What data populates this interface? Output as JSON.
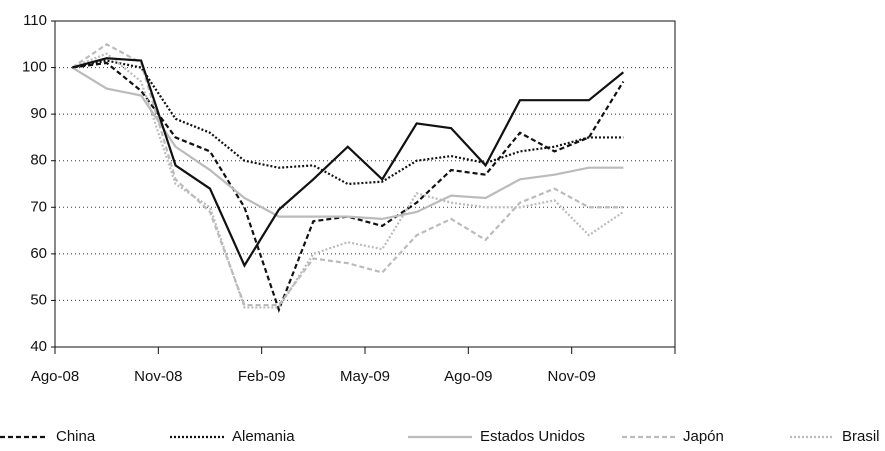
{
  "chart_data": {
    "type": "line",
    "xlim": [
      0,
      18
    ],
    "xticks": [
      {
        "value": 0,
        "label": "Ago-08"
      },
      {
        "value": 3,
        "label": "Nov-08"
      },
      {
        "value": 6,
        "label": "Feb-09"
      },
      {
        "value": 9,
        "label": "May-09"
      },
      {
        "value": 12,
        "label": "Ago-09"
      },
      {
        "value": 15,
        "label": "Nov-09"
      }
    ],
    "ylim": [
      40,
      110
    ],
    "yticks": [
      40,
      50,
      60,
      70,
      80,
      90,
      100,
      110
    ],
    "grid": true,
    "x": [
      0.5,
      1.5,
      2.5,
      3.5,
      4.5,
      5.5,
      6.5,
      7.5,
      8.5,
      9.5,
      10.5,
      11.5,
      12.5,
      13.5,
      14.5,
      15.5,
      16.5
    ],
    "series": [
      {
        "name": "China",
        "color": "#111111",
        "style": "dashed",
        "values": [
          100,
          101,
          95,
          85,
          82,
          70,
          48,
          67,
          68,
          66,
          71,
          78,
          77,
          86,
          82,
          85,
          97
        ]
      },
      {
        "name": "Alemania",
        "color": "#111111",
        "style": "dotted",
        "values": [
          100,
          101.5,
          100,
          89,
          86,
          80,
          78.5,
          79,
          75,
          75.5,
          80,
          81,
          79.5,
          82,
          83,
          85,
          85
        ]
      },
      {
        "name": "Estados Unidos",
        "color": "#bbbbbb",
        "style": "solid",
        "values": [
          100,
          95.5,
          94,
          83,
          78,
          72,
          68,
          68,
          68,
          67.5,
          69,
          72.5,
          72,
          76,
          77,
          78.5,
          78.5
        ]
      },
      {
        "name": "Japón",
        "color": "#bbbbbb",
        "style": "dashed",
        "values": [
          100,
          105,
          101,
          76,
          69,
          49,
          49,
          59,
          58,
          56,
          64,
          67.5,
          63,
          71,
          74,
          70,
          70
        ]
      },
      {
        "name": "Brasil",
        "color": "#bbbbbb",
        "style": "dotted",
        "values": [
          100,
          103,
          97,
          75,
          70,
          48.5,
          48.5,
          60,
          62.5,
          61,
          73,
          71,
          70,
          70,
          71.5,
          64,
          69
        ]
      },
      {
        "color": "#111111",
        "style": "solid",
        "values": [
          100,
          102,
          101.5,
          79,
          74,
          57.5,
          69.5,
          76,
          83,
          76,
          88,
          87,
          79,
          93,
          93,
          93,
          99
        ]
      }
    ]
  }
}
